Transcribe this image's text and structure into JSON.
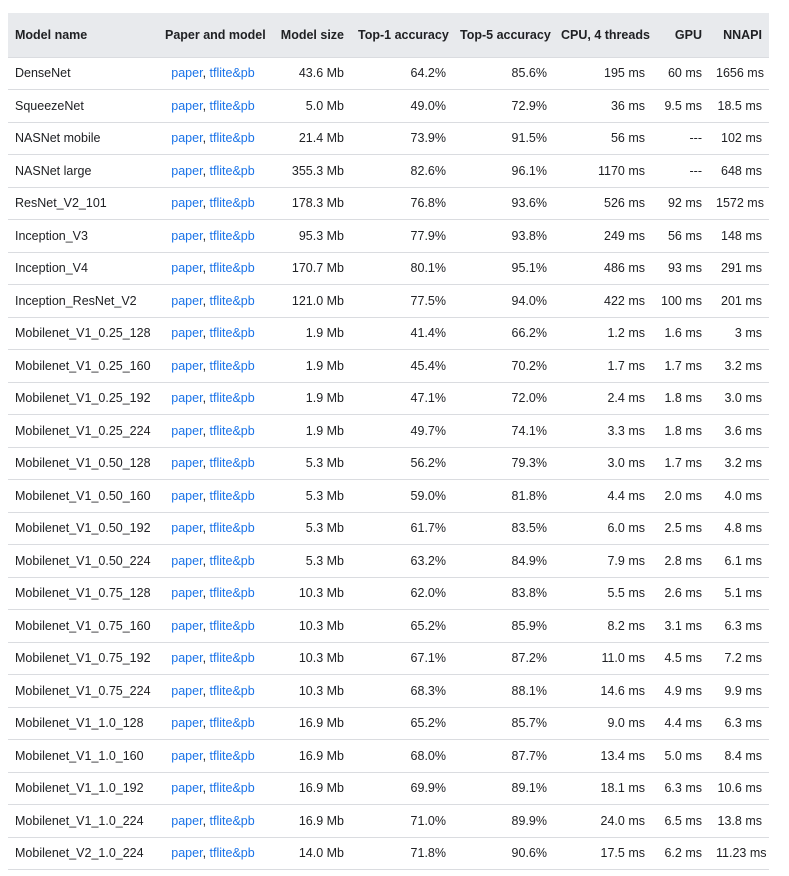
{
  "table": {
    "headers": {
      "name": "Model name",
      "paper": "Paper and model",
      "size": "Model size",
      "top1": "Top-1 accuracy",
      "top5": "Top-5 accuracy",
      "cpu": "CPU, 4 threads",
      "gpu": "GPU",
      "nnapi": "NNAPI"
    },
    "link_labels": {
      "paper": "paper",
      "separator": ",",
      "model": "tflite&pb"
    },
    "rows": [
      {
        "name": "DenseNet",
        "size": "43.6 Mb",
        "top1": "64.2%",
        "top5": "85.6%",
        "cpu": "195 ms",
        "gpu": "60 ms",
        "nnapi": "1656 ms"
      },
      {
        "name": "SqueezeNet",
        "size": "5.0 Mb",
        "top1": "49.0%",
        "top5": "72.9%",
        "cpu": "36 ms",
        "gpu": "9.5 ms",
        "nnapi": "18.5 ms"
      },
      {
        "name": "NASNet mobile",
        "size": "21.4 Mb",
        "top1": "73.9%",
        "top5": "91.5%",
        "cpu": "56 ms",
        "gpu": "---",
        "nnapi": "102 ms"
      },
      {
        "name": "NASNet large",
        "size": "355.3 Mb",
        "top1": "82.6%",
        "top5": "96.1%",
        "cpu": "1170 ms",
        "gpu": "---",
        "nnapi": "648 ms"
      },
      {
        "name": "ResNet_V2_101",
        "size": "178.3 Mb",
        "top1": "76.8%",
        "top5": "93.6%",
        "cpu": "526 ms",
        "gpu": "92 ms",
        "nnapi": "1572 ms"
      },
      {
        "name": "Inception_V3",
        "size": "95.3 Mb",
        "top1": "77.9%",
        "top5": "93.8%",
        "cpu": "249 ms",
        "gpu": "56 ms",
        "nnapi": "148 ms"
      },
      {
        "name": "Inception_V4",
        "size": "170.7 Mb",
        "top1": "80.1%",
        "top5": "95.1%",
        "cpu": "486 ms",
        "gpu": "93 ms",
        "nnapi": "291 ms"
      },
      {
        "name": "Inception_ResNet_V2",
        "size": "121.0 Mb",
        "top1": "77.5%",
        "top5": "94.0%",
        "cpu": "422 ms",
        "gpu": "100 ms",
        "nnapi": "201 ms"
      },
      {
        "name": "Mobilenet_V1_0.25_128",
        "size": "1.9 Mb",
        "top1": "41.4%",
        "top5": "66.2%",
        "cpu": "1.2 ms",
        "gpu": "1.6 ms",
        "nnapi": "3 ms"
      },
      {
        "name": "Mobilenet_V1_0.25_160",
        "size": "1.9 Mb",
        "top1": "45.4%",
        "top5": "70.2%",
        "cpu": "1.7 ms",
        "gpu": "1.7 ms",
        "nnapi": "3.2 ms"
      },
      {
        "name": "Mobilenet_V1_0.25_192",
        "size": "1.9 Mb",
        "top1": "47.1%",
        "top5": "72.0%",
        "cpu": "2.4 ms",
        "gpu": "1.8 ms",
        "nnapi": "3.0 ms"
      },
      {
        "name": "Mobilenet_V1_0.25_224",
        "size": "1.9 Mb",
        "top1": "49.7%",
        "top5": "74.1%",
        "cpu": "3.3 ms",
        "gpu": "1.8 ms",
        "nnapi": "3.6 ms"
      },
      {
        "name": "Mobilenet_V1_0.50_128",
        "size": "5.3 Mb",
        "top1": "56.2%",
        "top5": "79.3%",
        "cpu": "3.0 ms",
        "gpu": "1.7 ms",
        "nnapi": "3.2 ms"
      },
      {
        "name": "Mobilenet_V1_0.50_160",
        "size": "5.3 Mb",
        "top1": "59.0%",
        "top5": "81.8%",
        "cpu": "4.4 ms",
        "gpu": "2.0 ms",
        "nnapi": "4.0 ms"
      },
      {
        "name": "Mobilenet_V1_0.50_192",
        "size": "5.3 Mb",
        "top1": "61.7%",
        "top5": "83.5%",
        "cpu": "6.0 ms",
        "gpu": "2.5 ms",
        "nnapi": "4.8 ms"
      },
      {
        "name": "Mobilenet_V1_0.50_224",
        "size": "5.3 Mb",
        "top1": "63.2%",
        "top5": "84.9%",
        "cpu": "7.9 ms",
        "gpu": "2.8 ms",
        "nnapi": "6.1 ms"
      },
      {
        "name": "Mobilenet_V1_0.75_128",
        "size": "10.3 Mb",
        "top1": "62.0%",
        "top5": "83.8%",
        "cpu": "5.5 ms",
        "gpu": "2.6 ms",
        "nnapi": "5.1 ms"
      },
      {
        "name": "Mobilenet_V1_0.75_160",
        "size": "10.3 Mb",
        "top1": "65.2%",
        "top5": "85.9%",
        "cpu": "8.2 ms",
        "gpu": "3.1 ms",
        "nnapi": "6.3 ms"
      },
      {
        "name": "Mobilenet_V1_0.75_192",
        "size": "10.3 Mb",
        "top1": "67.1%",
        "top5": "87.2%",
        "cpu": "11.0 ms",
        "gpu": "4.5 ms",
        "nnapi": "7.2 ms"
      },
      {
        "name": "Mobilenet_V1_0.75_224",
        "size": "10.3 Mb",
        "top1": "68.3%",
        "top5": "88.1%",
        "cpu": "14.6 ms",
        "gpu": "4.9 ms",
        "nnapi": "9.9 ms"
      },
      {
        "name": "Mobilenet_V1_1.0_128",
        "size": "16.9 Mb",
        "top1": "65.2%",
        "top5": "85.7%",
        "cpu": "9.0 ms",
        "gpu": "4.4 ms",
        "nnapi": "6.3 ms"
      },
      {
        "name": "Mobilenet_V1_1.0_160",
        "size": "16.9 Mb",
        "top1": "68.0%",
        "top5": "87.7%",
        "cpu": "13.4 ms",
        "gpu": "5.0 ms",
        "nnapi": "8.4 ms"
      },
      {
        "name": "Mobilenet_V1_1.0_192",
        "size": "16.9 Mb",
        "top1": "69.9%",
        "top5": "89.1%",
        "cpu": "18.1 ms",
        "gpu": "6.3 ms",
        "nnapi": "10.6 ms"
      },
      {
        "name": "Mobilenet_V1_1.0_224",
        "size": "16.9 Mb",
        "top1": "71.0%",
        "top5": "89.9%",
        "cpu": "24.0 ms",
        "gpu": "6.5 ms",
        "nnapi": "13.8 ms"
      },
      {
        "name": "Mobilenet_V2_1.0_224",
        "size": "14.0 Mb",
        "top1": "71.8%",
        "top5": "90.6%",
        "cpu": "17.5 ms",
        "gpu": "6.2 ms",
        "nnapi": "11.23 ms"
      }
    ]
  },
  "colors": {
    "header_bg": "#e8eaed",
    "link": "#1a73e8",
    "border": "#dadce0",
    "text": "#202124"
  }
}
